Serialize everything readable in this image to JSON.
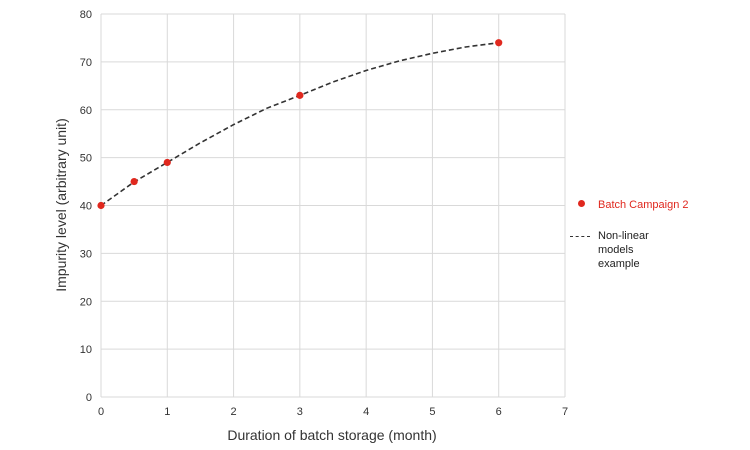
{
  "chart_data": {
    "type": "scatter",
    "xlabel": "Duration of batch storage (month)",
    "ylabel": "Impurity level (arbitrary unit)",
    "xlim": [
      0,
      7
    ],
    "ylim": [
      0,
      80
    ],
    "x_ticks": [
      0,
      1,
      2,
      3,
      4,
      5,
      6,
      7
    ],
    "y_ticks": [
      0,
      10,
      20,
      30,
      40,
      50,
      60,
      70,
      80
    ],
    "grid": true,
    "legend_position": "right",
    "series": [
      {
        "name": "Batch Campaign 2",
        "type": "scatter",
        "color": "#e0281e",
        "x": [
          0,
          0.5,
          1,
          3,
          6
        ],
        "y": [
          40,
          45,
          49,
          63,
          74
        ]
      },
      {
        "name": "Non-linear models example",
        "type": "line",
        "style": "dashed",
        "color": "#333333",
        "x": [
          0,
          0.5,
          1,
          1.5,
          2,
          2.5,
          3,
          3.5,
          4,
          4.5,
          5,
          5.5,
          6
        ],
        "y": [
          40,
          44.9,
          49,
          53.1,
          56.9,
          60.3,
          63,
          65.8,
          68.2,
          70.2,
          71.8,
          73.1,
          74
        ]
      }
    ]
  }
}
